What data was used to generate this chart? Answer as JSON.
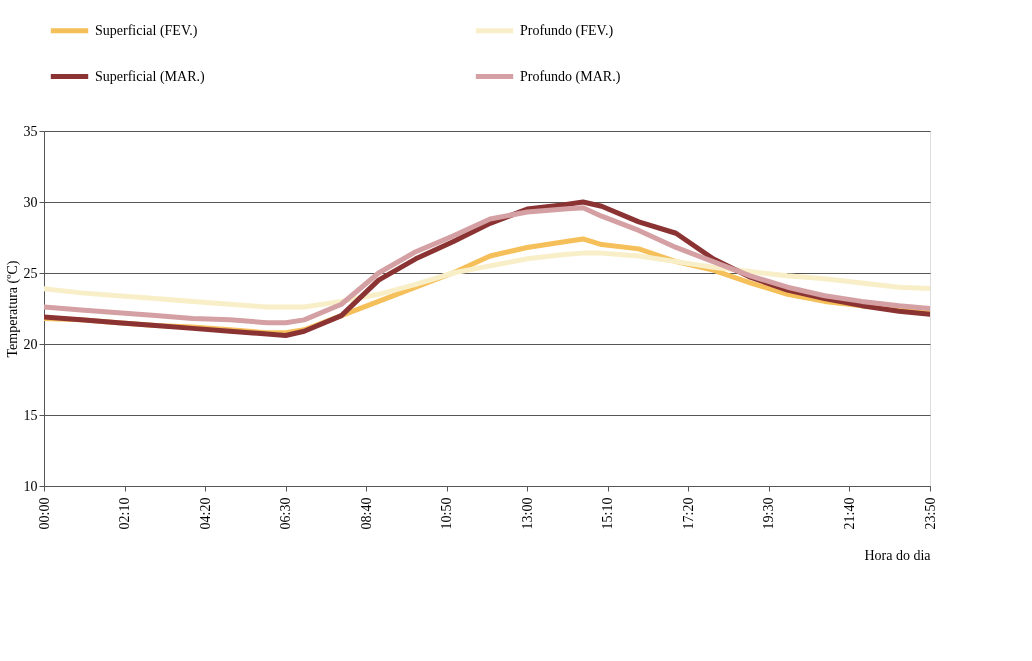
{
  "chart_data": {
    "type": "line",
    "xlabel": "Hora do dia",
    "ylabel": "Temperatura (ºC)",
    "x": [
      0,
      1,
      2,
      3,
      4,
      5,
      6,
      6.5,
      7,
      8,
      9,
      10,
      11,
      12,
      13,
      14,
      14.5,
      15,
      16,
      17,
      18,
      19,
      20,
      21,
      22,
      23,
      23.833
    ],
    "series": [
      {
        "name": "Superficial (FEV.)",
        "color": "#f5bf5a",
        "values": [
          21.8,
          21.7,
          21.5,
          21.3,
          21.2,
          21.0,
          20.8,
          20.8,
          21.0,
          22.0,
          23.0,
          24.0,
          25.0,
          26.2,
          26.8,
          27.2,
          27.4,
          27.0,
          26.7,
          25.8,
          25.2,
          24.3,
          23.5,
          23.0,
          22.7,
          22.4,
          22.3
        ]
      },
      {
        "name": "Profundo (FEV.)",
        "color": "#f8efc8",
        "values": [
          23.9,
          23.6,
          23.4,
          23.2,
          23.0,
          22.8,
          22.6,
          22.6,
          22.6,
          23.0,
          23.5,
          24.2,
          25.0,
          25.5,
          26.0,
          26.3,
          26.4,
          26.4,
          26.2,
          25.8,
          25.4,
          25.1,
          24.8,
          24.6,
          24.3,
          24.0,
          23.9
        ]
      },
      {
        "name": "Superficial (MAR.)",
        "color": "#8b3333",
        "values": [
          21.9,
          21.7,
          21.5,
          21.3,
          21.1,
          20.9,
          20.7,
          20.6,
          20.9,
          22.0,
          24.5,
          26.0,
          27.2,
          28.5,
          29.5,
          29.8,
          30.0,
          29.7,
          28.6,
          27.8,
          26.0,
          24.7,
          23.8,
          23.2,
          22.7,
          22.3,
          22.1
        ]
      },
      {
        "name": "Profundo (MAR.)",
        "color": "#d4a0a3",
        "values": [
          22.6,
          22.4,
          22.2,
          22.0,
          21.8,
          21.7,
          21.5,
          21.5,
          21.7,
          22.8,
          25.0,
          26.5,
          27.6,
          28.8,
          29.3,
          29.5,
          29.6,
          29.0,
          28.0,
          26.8,
          25.8,
          24.8,
          24.0,
          23.4,
          23.0,
          22.7,
          22.5
        ]
      }
    ],
    "xlim": [
      0,
      23.833
    ],
    "xticks": [
      {
        "value": 0,
        "label": "00:00"
      },
      {
        "value": 2.1667,
        "label": "02:10"
      },
      {
        "value": 4.3333,
        "label": "04:20"
      },
      {
        "value": 6.5,
        "label": "06:30"
      },
      {
        "value": 8.6667,
        "label": "08:40"
      },
      {
        "value": 10.8333,
        "label": "10:50"
      },
      {
        "value": 13,
        "label": "13:00"
      },
      {
        "value": 15.1667,
        "label": "15:10"
      },
      {
        "value": 17.3333,
        "label": "17:20"
      },
      {
        "value": 19.5,
        "label": "19:30"
      },
      {
        "value": 21.6667,
        "label": "21:40"
      },
      {
        "value": 23.833,
        "label": "23:50"
      }
    ],
    "ylim": [
      10,
      35
    ],
    "yticks": [
      10,
      15,
      20,
      25,
      30,
      35
    ],
    "grid": "y",
    "legend": "top",
    "marker": "none",
    "line_style": "solid"
  }
}
